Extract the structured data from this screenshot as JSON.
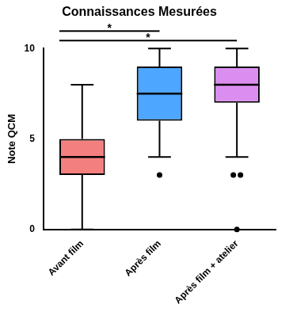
{
  "chart_data": {
    "type": "boxplot",
    "title": "Connaissances Mesurées",
    "y_label": "Note QCM",
    "categories": [
      "Avant film",
      "Après film",
      "Après film + atelier"
    ],
    "colors": [
      "#f47f7f",
      "#4da6ff",
      "#dc8ef0"
    ],
    "boxes": [
      {
        "min": 0,
        "q1": 3,
        "median": 4,
        "q3": 5,
        "max": 8,
        "outliers": []
      },
      {
        "min": 4,
        "q1": 6,
        "median": 7.5,
        "q3": 9,
        "max": 10,
        "outliers": [
          3
        ]
      },
      {
        "min": 4,
        "q1": 7,
        "median": 8,
        "q3": 9,
        "max": 10,
        "outliers": [
          3,
          3,
          0
        ]
      }
    ],
    "ylim": [
      0,
      10
    ],
    "yticks": [
      0,
      5,
      10
    ],
    "grid": false,
    "annotations": [
      {
        "from": "Avant film",
        "to": "Après film",
        "label": "*"
      },
      {
        "from": "Avant film",
        "to": "Après film + atelier",
        "label": "*"
      }
    ]
  }
}
